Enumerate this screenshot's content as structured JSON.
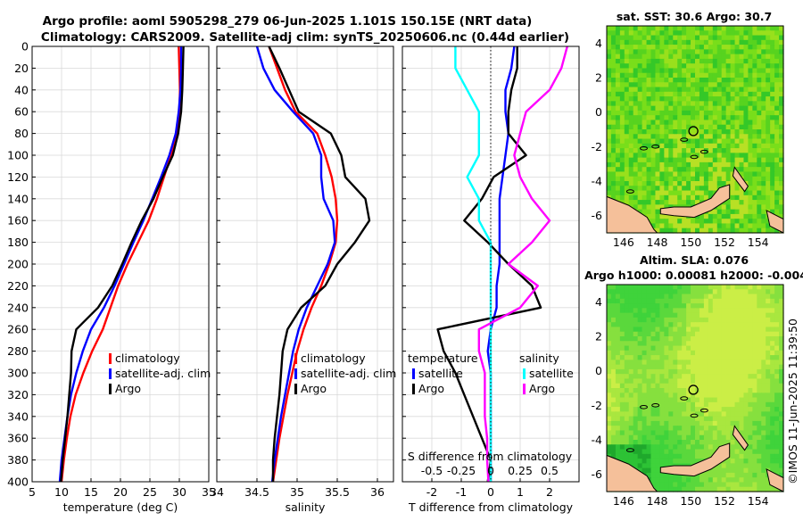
{
  "titles": {
    "line1": "Argo profile: aoml 5905298_279 06-Jun-2025 1.101S 150.15E (NRT data)",
    "line2": "Climatology: CARS2009. Satellite-adj clim: synTS_20250606.nc (0.44d earlier)"
  },
  "credit": "©IMOS 11-Jun-2025 11:39:50",
  "chart_data": [
    {
      "type": "line",
      "name": "temperature",
      "xlabel": "temperature (deg C)",
      "ylabel": "",
      "xlim": [
        5,
        35
      ],
      "ylim": [
        400,
        0
      ],
      "xticks": [
        "5",
        "10",
        "15",
        "20",
        "25",
        "30",
        "35"
      ],
      "yticks": [
        "0",
        "20",
        "40",
        "60",
        "80",
        "100",
        "120",
        "140",
        "160",
        "180",
        "200",
        "220",
        "240",
        "260",
        "280",
        "300",
        "320",
        "340",
        "360",
        "380",
        "400"
      ],
      "colors": {
        "climatology": "#ff0000",
        "satellite": "#0000ff",
        "argo": "#000000"
      },
      "legend": [
        "climatology",
        "satellite-adj. clim",
        "Argo"
      ],
      "series": [
        {
          "name": "climatology",
          "x": [
            29.9,
            30.0,
            30.1,
            30.0,
            29.6,
            28.6,
            27.4,
            26.2,
            24.8,
            23.0,
            21.2,
            19.6,
            18.3,
            17.0,
            15.2,
            13.7,
            12.4,
            11.5,
            10.9,
            10.4,
            10.0
          ],
          "y": [
            0,
            20,
            40,
            60,
            80,
            100,
            120,
            140,
            160,
            180,
            200,
            220,
            240,
            260,
            280,
            300,
            320,
            340,
            360,
            380,
            400
          ]
        },
        {
          "name": "satellite-adj. clim",
          "x": [
            30.3,
            30.3,
            30.2,
            29.9,
            29.4,
            28.3,
            26.9,
            25.4,
            23.9,
            22.2,
            20.6,
            19.0,
            17.2,
            15.0,
            13.6,
            12.5,
            11.6,
            11.0,
            10.5,
            10.0,
            9.7
          ],
          "y": [
            0,
            20,
            40,
            60,
            80,
            100,
            120,
            140,
            160,
            180,
            200,
            220,
            240,
            260,
            280,
            300,
            320,
            340,
            360,
            380,
            400
          ]
        },
        {
          "name": "Argo",
          "x": [
            30.7,
            30.6,
            30.5,
            30.3,
            29.8,
            28.9,
            27.2,
            25.6,
            23.6,
            21.9,
            20.3,
            18.6,
            16.2,
            12.5,
            11.7,
            11.6,
            11.3,
            11.0,
            10.6,
            10.2,
            9.9
          ],
          "y": [
            0,
            20,
            40,
            60,
            80,
            100,
            120,
            140,
            160,
            180,
            200,
            220,
            240,
            260,
            280,
            300,
            320,
            340,
            360,
            380,
            400
          ]
        }
      ]
    },
    {
      "type": "line",
      "name": "salinity",
      "xlabel": "salinity",
      "xlim": [
        34,
        36.2
      ],
      "ylim": [
        400,
        0
      ],
      "xticks": [
        "34",
        "34.5",
        "35",
        "35.5",
        "36"
      ],
      "legend": [
        "climatology",
        "satellite-adj. clim",
        "Argo"
      ],
      "series": [
        {
          "name": "climatology",
          "x": [
            34.65,
            34.75,
            34.85,
            34.98,
            35.25,
            35.35,
            35.43,
            35.48,
            35.5,
            35.48,
            35.4,
            35.3,
            35.18,
            35.08,
            35.0,
            34.94,
            34.88,
            34.83,
            34.78,
            34.74,
            34.7
          ],
          "y": [
            0,
            20,
            40,
            60,
            80,
            100,
            120,
            140,
            160,
            180,
            200,
            220,
            240,
            260,
            280,
            300,
            320,
            340,
            360,
            380,
            400
          ]
        },
        {
          "name": "satellite-adj. clim",
          "x": [
            34.5,
            34.58,
            34.72,
            34.95,
            35.2,
            35.3,
            35.3,
            35.33,
            35.45,
            35.47,
            35.38,
            35.25,
            35.12,
            35.02,
            34.95,
            34.9,
            34.85,
            34.8,
            34.76,
            34.72,
            34.69
          ],
          "y": [
            0,
            20,
            40,
            60,
            80,
            100,
            120,
            140,
            160,
            180,
            200,
            220,
            240,
            260,
            280,
            300,
            320,
            340,
            360,
            380,
            400
          ]
        },
        {
          "name": "Argo",
          "x": [
            34.65,
            34.78,
            34.9,
            35.02,
            35.42,
            35.55,
            35.6,
            35.85,
            35.9,
            35.72,
            35.5,
            35.35,
            35.05,
            34.88,
            34.82,
            34.8,
            34.78,
            34.75,
            34.72,
            34.7,
            34.7
          ],
          "y": [
            0,
            20,
            40,
            60,
            80,
            100,
            120,
            140,
            160,
            180,
            200,
            220,
            240,
            260,
            280,
            300,
            320,
            340,
            360,
            380,
            400
          ]
        }
      ]
    },
    {
      "type": "line",
      "name": "difference",
      "xlabel": "T difference from climatology",
      "xlabel_top": "S difference from climatology",
      "xlim": [
        -3,
        3
      ],
      "ylim": [
        400,
        0
      ],
      "xticks": [
        "-2",
        "-1",
        "0",
        "1",
        "2"
      ],
      "sticks": [
        "-0.5",
        "-0.25",
        "0",
        "0.25",
        "0.5"
      ],
      "legend_temperature": [
        "temperature",
        "satellite",
        "Argo"
      ],
      "legend_salinity": [
        "salinity",
        "satellite",
        "Argo"
      ],
      "colors": {
        "t_satellite": "#0000ff",
        "t_argo": "#000000",
        "s_satellite": "#00ffff",
        "s_argo": "#ff00ff"
      },
      "series": [
        {
          "name": "T satellite",
          "x": [
            0.8,
            0.7,
            0.5,
            0.5,
            0.6,
            0.5,
            0.4,
            0.3,
            0.3,
            0.3,
            0.3,
            0.2,
            0.2,
            0.0,
            -0.1,
            0.0,
            0.0,
            0.0,
            0.0,
            0.0,
            0.0
          ],
          "y": [
            0,
            20,
            40,
            60,
            80,
            100,
            120,
            140,
            160,
            180,
            200,
            220,
            240,
            260,
            280,
            300,
            320,
            340,
            360,
            380,
            400
          ]
        },
        {
          "name": "T Argo",
          "x": [
            0.9,
            0.9,
            0.7,
            0.6,
            0.6,
            1.2,
            0.1,
            -0.3,
            -0.9,
            -0.1,
            0.6,
            1.4,
            1.7,
            -1.8,
            -1.6,
            -1.2,
            -0.9,
            -0.6,
            -0.3,
            0.0,
            -0.1
          ],
          "y": [
            0,
            20,
            40,
            60,
            80,
            100,
            120,
            140,
            160,
            180,
            200,
            220,
            240,
            260,
            280,
            300,
            320,
            340,
            360,
            380,
            400
          ]
        },
        {
          "name": "S satellite",
          "x": [
            -0.3,
            -0.3,
            -0.2,
            -0.1,
            -0.1,
            -0.1,
            -0.2,
            -0.1,
            -0.1,
            0.0,
            0.0,
            0.0,
            0.0,
            0.0,
            0.0,
            0.0,
            0.0,
            0.0,
            0.0,
            0.0,
            0.0
          ],
          "y": [
            0,
            20,
            40,
            60,
            80,
            100,
            120,
            140,
            160,
            180,
            200,
            220,
            240,
            260,
            280,
            300,
            320,
            340,
            360,
            380,
            400
          ]
        },
        {
          "name": "S Argo",
          "x": [
            0.65,
            0.6,
            0.5,
            0.3,
            0.25,
            0.2,
            0.25,
            0.35,
            0.5,
            0.35,
            0.15,
            0.4,
            0.25,
            -0.1,
            -0.1,
            -0.05,
            -0.05,
            -0.05,
            -0.03,
            -0.03,
            -0.02
          ],
          "y": [
            0,
            20,
            40,
            60,
            80,
            100,
            120,
            140,
            160,
            180,
            200,
            220,
            240,
            260,
            280,
            300,
            320,
            340,
            360,
            380,
            400
          ]
        }
      ]
    },
    {
      "type": "heatmap",
      "name": "sst-map",
      "title": "sat. SST: 30.6 Argo: 30.7",
      "xlim": [
        145,
        155.5
      ],
      "ylim": [
        -7,
        5
      ],
      "xticks": [
        "146",
        "148",
        "150",
        "152",
        "154"
      ],
      "yticks": [
        "4",
        "2",
        "0",
        "-2",
        "-4",
        "-6"
      ],
      "marker": {
        "lon": 150.15,
        "lat": -1.101
      }
    },
    {
      "type": "heatmap",
      "name": "sla-map",
      "title": "Altim. SLA: 0.076",
      "subtitle": "Argo h1000: 0.00081 h2000: -0.004",
      "xlim": [
        145,
        155.5
      ],
      "ylim": [
        -7,
        5
      ],
      "xticks": [
        "146",
        "148",
        "150",
        "152",
        "154"
      ],
      "yticks": [
        "4",
        "2",
        "0",
        "-2",
        "-4",
        "-6"
      ],
      "marker": {
        "lon": 150.15,
        "lat": -1.101
      }
    }
  ]
}
